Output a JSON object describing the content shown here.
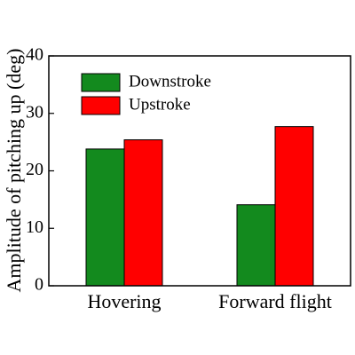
{
  "chart_data": {
    "type": "bar",
    "y_label": "Amplitude of pitching up (deg)",
    "categories": [
      "Hovering",
      "Forward flight"
    ],
    "series": [
      {
        "name": "Downstroke",
        "color": "#138a1e",
        "values": [
          23.8,
          14.1
        ]
      },
      {
        "name": "Upstroke",
        "color": "#ff0000",
        "values": [
          25.4,
          27.7
        ]
      }
    ],
    "ylim": [
      0,
      40
    ],
    "yticks": [
      0,
      10,
      20,
      30,
      40
    ],
    "grid": false,
    "legend": "upper left"
  }
}
